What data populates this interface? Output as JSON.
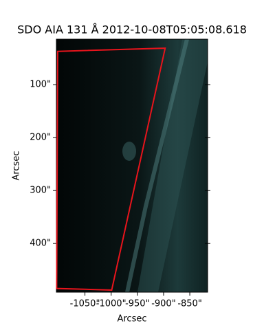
{
  "chart_data": {
    "type": "image",
    "title": "SDO AIA 131 Å 2012-10-08T05:05:08.618",
    "xlabel": "Arcsec",
    "ylabel": "Arcsec",
    "xlim": [
      -1104.5,
      -816
    ],
    "ylim": [
      492,
      14
    ],
    "xticks": [
      {
        "value": -1050,
        "label": "-1050\""
      },
      {
        "value": -1000,
        "label": "-1000\""
      },
      {
        "value": -950,
        "label": "-950\""
      },
      {
        "value": -900,
        "label": "-900\""
      },
      {
        "value": -850,
        "label": "-850\""
      }
    ],
    "yticks": [
      {
        "value": 100,
        "label": "100\""
      },
      {
        "value": 200,
        "label": "200\""
      },
      {
        "value": 300,
        "label": "300\""
      },
      {
        "value": 400,
        "label": "400\""
      }
    ],
    "region": {
      "color": "#e8141c",
      "x": [
        -1102,
        -897,
        -999,
        -1104
      ],
      "y": [
        37,
        31,
        488,
        485
      ]
    }
  }
}
